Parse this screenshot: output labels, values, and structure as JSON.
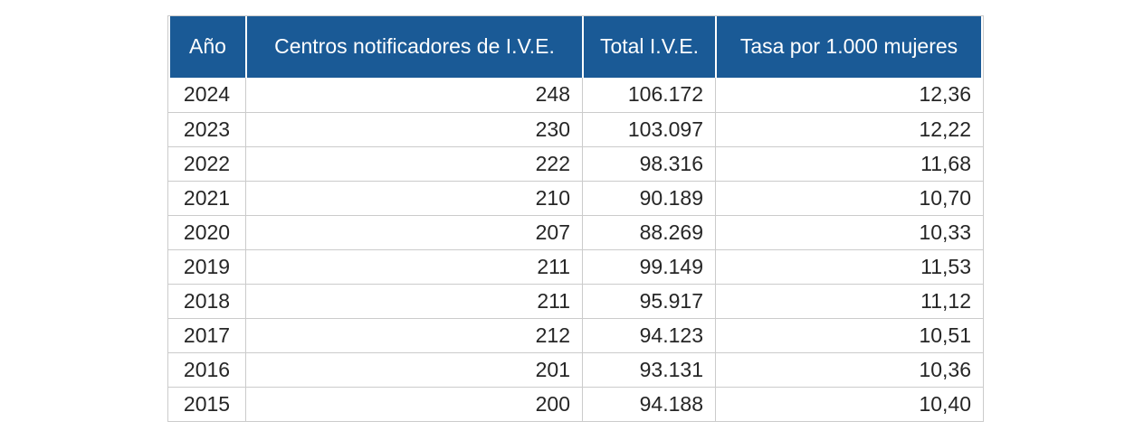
{
  "colors": {
    "header_bg": "#1a5a96",
    "header_text": "#ffffff",
    "grid_border": "#cbcbcb",
    "body_text": "#262626",
    "row_bg": "#ffffff"
  },
  "table": {
    "columns": [
      {
        "label": "Año",
        "align": "center"
      },
      {
        "label": "Centros notificadores de I.V.E.",
        "align": "right"
      },
      {
        "label": "Total I.V.E.",
        "align": "right"
      },
      {
        "label": "Tasa por 1.000 mujeres",
        "align": "right"
      }
    ],
    "rows": [
      [
        "2024",
        "248",
        "106.172",
        "12,36"
      ],
      [
        "2023",
        "230",
        "103.097",
        "12,22"
      ],
      [
        "2022",
        "222",
        "98.316",
        "11,68"
      ],
      [
        "2021",
        "210",
        "90.189",
        "10,70"
      ],
      [
        "2020",
        "207",
        "88.269",
        "10,33"
      ],
      [
        "2019",
        "211",
        "99.149",
        "11,53"
      ],
      [
        "2018",
        "211",
        "95.917",
        "11,12"
      ],
      [
        "2017",
        "212",
        "94.123",
        "10,51"
      ],
      [
        "2016",
        "201",
        "93.131",
        "10,36"
      ],
      [
        "2015",
        "200",
        "94.188",
        "10,40"
      ]
    ]
  },
  "chart_data": {
    "type": "table",
    "title": "",
    "columns": [
      "Año",
      "Centros notificadores de I.V.E.",
      "Total I.V.E.",
      "Tasa por 1.000 mujeres"
    ],
    "years": [
      2024,
      2023,
      2022,
      2021,
      2020,
      2019,
      2018,
      2017,
      2016,
      2015
    ],
    "series": [
      {
        "name": "Centros notificadores de I.V.E.",
        "values": [
          248,
          230,
          222,
          210,
          207,
          211,
          211,
          212,
          201,
          200
        ]
      },
      {
        "name": "Total I.V.E.",
        "values": [
          106172,
          103097,
          98316,
          90189,
          88269,
          99149,
          95917,
          94123,
          93131,
          94188
        ]
      },
      {
        "name": "Tasa por 1.000 mujeres",
        "values": [
          12.36,
          12.22,
          11.68,
          10.7,
          10.33,
          11.53,
          11.12,
          10.51,
          10.36,
          10.4
        ]
      }
    ],
    "number_format": "es-ES (thousands '.', decimal ',')"
  }
}
